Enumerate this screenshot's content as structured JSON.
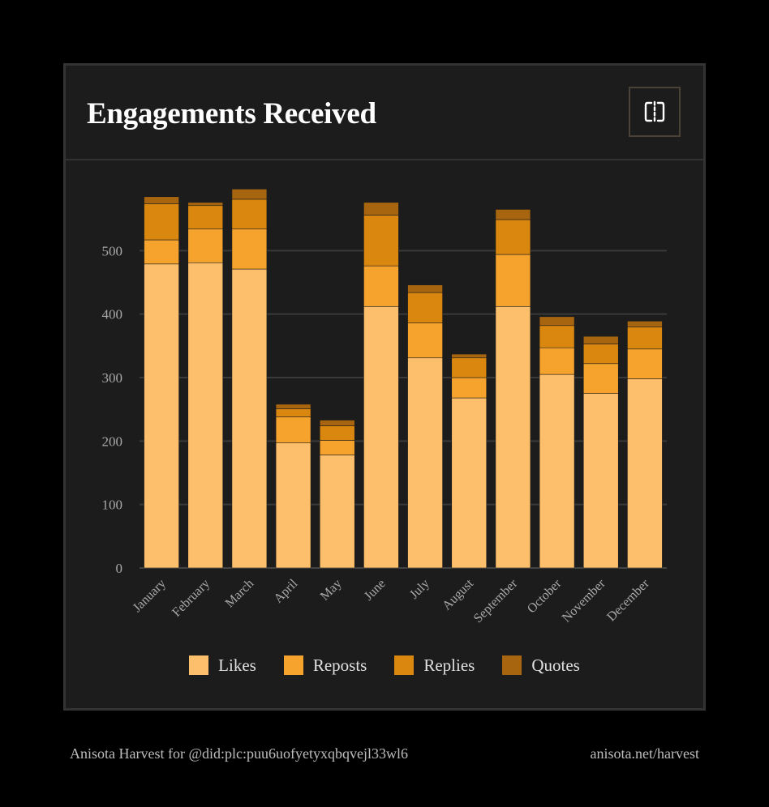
{
  "card": {
    "title": "Engagements Received",
    "toggle_icon": "split-view-icon"
  },
  "chart_data": {
    "type": "bar",
    "stacked": true,
    "title": "",
    "xlabel": "",
    "ylabel": "",
    "categories": [
      "January",
      "February",
      "March",
      "April",
      "May",
      "June",
      "July",
      "August",
      "September",
      "October",
      "November",
      "December"
    ],
    "series": [
      {
        "name": "Likes",
        "color": "#fdbf6b",
        "values": [
          479,
          481,
          471,
          197,
          178,
          412,
          331,
          268,
          412,
          305,
          275,
          298
        ]
      },
      {
        "name": "Reposts",
        "color": "#f5a32d",
        "values": [
          38,
          53,
          63,
          41,
          23,
          64,
          55,
          32,
          82,
          42,
          47,
          47
        ]
      },
      {
        "name": "Replies",
        "color": "#d9870f",
        "values": [
          57,
          37,
          47,
          13,
          23,
          80,
          48,
          31,
          55,
          35,
          31,
          35
        ]
      },
      {
        "name": "Quotes",
        "color": "#a8650f",
        "values": [
          11,
          5,
          16,
          7,
          9,
          20,
          12,
          6,
          16,
          14,
          12,
          9
        ]
      }
    ],
    "yticks": [
      0,
      100,
      200,
      300,
      400,
      500
    ],
    "ylim": [
      0,
      600
    ],
    "grid": true,
    "legend_position": "bottom"
  },
  "footer": {
    "left": "Anisota Harvest for @did:plc:puu6uofyetyxqbqvejl33wl6",
    "right": "anisota.net/harvest"
  }
}
